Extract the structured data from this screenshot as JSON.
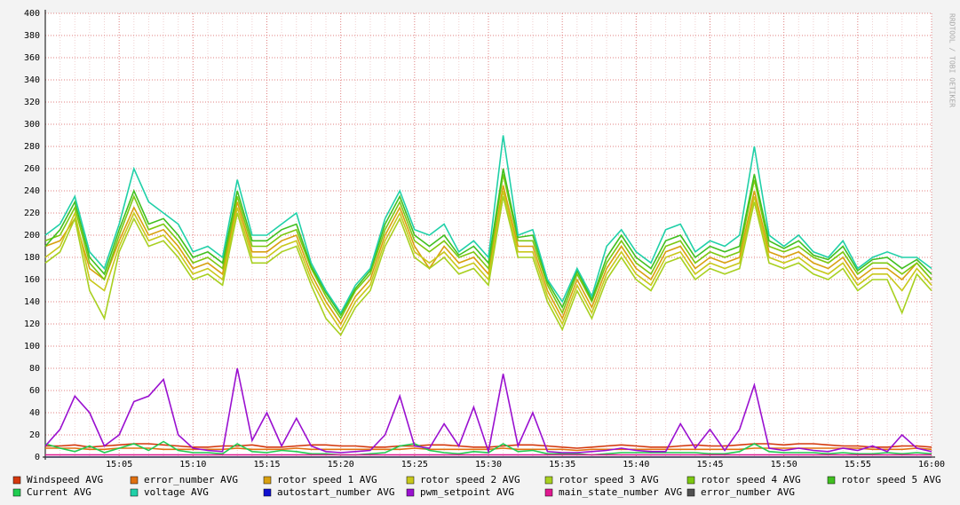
{
  "chart_data": {
    "type": "line",
    "watermark": "RRDTOOL / TOBI OETIKER",
    "categories": [
      null,
      null,
      null,
      null,
      null,
      "15:05",
      null,
      null,
      null,
      null,
      "15:10",
      null,
      null,
      null,
      null,
      "15:15",
      null,
      null,
      null,
      null,
      "15:20",
      null,
      null,
      null,
      null,
      "15:25",
      null,
      null,
      null,
      null,
      "15:30",
      null,
      null,
      null,
      null,
      "15:35",
      null,
      null,
      null,
      null,
      "15:40",
      null,
      null,
      null,
      null,
      "15:45",
      null,
      null,
      null,
      null,
      "15:50",
      null,
      null,
      null,
      null,
      "15:55",
      null,
      null,
      null,
      null,
      "16:00"
    ],
    "ylim": [
      0,
      400
    ],
    "yticks": [
      0,
      20,
      40,
      60,
      80,
      100,
      120,
      140,
      160,
      180,
      200,
      220,
      240,
      260,
      280,
      300,
      320,
      340,
      360,
      380,
      400
    ],
    "grid": true,
    "series": [
      {
        "name": "Windspeed AVG",
        "color": "#d4380d",
        "values": [
          10,
          10,
          11,
          9,
          10,
          11,
          12,
          12,
          11,
          10,
          9,
          9,
          10,
          10,
          11,
          9,
          9,
          10,
          11,
          11,
          10,
          10,
          9,
          9,
          10,
          10,
          11,
          11,
          10,
          9,
          9,
          10,
          11,
          11,
          10,
          9,
          8,
          9,
          10,
          11,
          10,
          9,
          9,
          10,
          11,
          10,
          10,
          11,
          12,
          12,
          11,
          12,
          12,
          11,
          10,
          10,
          9,
          9,
          10,
          10,
          9
        ]
      },
      {
        "name": "error_number AVG",
        "color": "#e07010",
        "values": [
          8,
          8,
          8,
          7,
          7,
          8,
          8,
          8,
          7,
          7,
          7,
          7,
          7,
          8,
          7,
          7,
          7,
          8,
          7,
          7,
          7,
          7,
          7,
          7,
          7,
          8,
          7,
          7,
          7,
          7,
          7,
          8,
          7,
          7,
          7,
          7,
          6,
          7,
          7,
          7,
          7,
          7,
          7,
          7,
          7,
          7,
          7,
          7,
          8,
          8,
          8,
          8,
          8,
          8,
          8,
          8,
          7,
          7,
          7,
          8,
          7
        ]
      },
      {
        "name": "rotor speed 1 AVG",
        "color": "#d8a010",
        "values": [
          190,
          195,
          215,
          170,
          160,
          195,
          225,
          200,
          205,
          190,
          170,
          175,
          165,
          230,
          185,
          185,
          195,
          200,
          165,
          140,
          120,
          145,
          160,
          200,
          225,
          190,
          170,
          190,
          175,
          180,
          165,
          245,
          190,
          190,
          150,
          125,
          160,
          135,
          170,
          190,
          170,
          160,
          185,
          190,
          170,
          180,
          175,
          180,
          240,
          185,
          180,
          185,
          175,
          170,
          180,
          160,
          170,
          170,
          160,
          175,
          160
        ]
      },
      {
        "name": "rotor speed 2 AVG",
        "color": "#c8c81a",
        "values": [
          180,
          190,
          220,
          160,
          150,
          190,
          220,
          195,
          200,
          185,
          165,
          170,
          160,
          225,
          180,
          180,
          190,
          195,
          160,
          135,
          115,
          140,
          155,
          195,
          220,
          185,
          175,
          185,
          170,
          175,
          160,
          240,
          185,
          185,
          145,
          120,
          155,
          130,
          165,
          185,
          165,
          155,
          180,
          185,
          165,
          175,
          170,
          175,
          235,
          180,
          175,
          180,
          170,
          165,
          175,
          155,
          165,
          165,
          150,
          170,
          155
        ]
      },
      {
        "name": "rotor speed 3 AVG",
        "color": "#a8d020",
        "values": [
          175,
          185,
          215,
          150,
          125,
          185,
          215,
          190,
          195,
          180,
          160,
          165,
          155,
          220,
          175,
          175,
          185,
          190,
          155,
          125,
          110,
          135,
          150,
          190,
          215,
          180,
          170,
          180,
          165,
          170,
          155,
          235,
          180,
          180,
          140,
          115,
          150,
          125,
          160,
          180,
          160,
          150,
          175,
          180,
          160,
          170,
          165,
          170,
          230,
          175,
          170,
          175,
          165,
          160,
          170,
          150,
          160,
          160,
          130,
          165,
          150
        ]
      },
      {
        "name": "rotor speed 4 AVG",
        "color": "#7cc810",
        "values": [
          195,
          200,
          225,
          175,
          160,
          200,
          235,
          205,
          210,
          195,
          175,
          180,
          170,
          235,
          190,
          190,
          200,
          205,
          170,
          145,
          125,
          150,
          165,
          205,
          230,
          195,
          185,
          195,
          180,
          185,
          170,
          255,
          195,
          195,
          155,
          130,
          165,
          140,
          175,
          195,
          175,
          165,
          190,
          195,
          175,
          185,
          180,
          185,
          250,
          190,
          185,
          190,
          180,
          175,
          185,
          165,
          175,
          175,
          165,
          175,
          160
        ]
      },
      {
        "name": "rotor speed 5 AVG",
        "color": "#40c020",
        "values": [
          190,
          205,
          230,
          180,
          165,
          205,
          240,
          210,
          215,
          200,
          180,
          185,
          175,
          240,
          195,
          195,
          205,
          210,
          172,
          148,
          128,
          152,
          168,
          210,
          235,
          200,
          190,
          200,
          182,
          190,
          175,
          260,
          198,
          200,
          158,
          135,
          168,
          142,
          180,
          200,
          180,
          170,
          195,
          200,
          180,
          190,
          185,
          190,
          255,
          195,
          188,
          195,
          182,
          178,
          190,
          168,
          178,
          180,
          170,
          178,
          165
        ]
      },
      {
        "name": "Current AVG",
        "color": "#20cc50",
        "values": [
          12,
          8,
          5,
          10,
          4,
          8,
          12,
          6,
          14,
          6,
          4,
          4,
          3,
          12,
          5,
          4,
          6,
          5,
          3,
          3,
          2,
          2,
          3,
          4,
          10,
          12,
          6,
          4,
          3,
          5,
          4,
          12,
          5,
          6,
          3,
          3,
          3,
          2,
          3,
          4,
          4,
          4,
          4,
          4,
          4,
          3,
          3,
          5,
          12,
          5,
          4,
          4,
          4,
          3,
          4,
          3,
          3,
          4,
          3,
          4,
          3
        ]
      },
      {
        "name": "voltage AVG",
        "color": "#20d0a8",
        "values": [
          200,
          210,
          235,
          185,
          170,
          210,
          260,
          230,
          220,
          210,
          185,
          190,
          180,
          250,
          200,
          200,
          210,
          220,
          175,
          150,
          130,
          155,
          170,
          215,
          240,
          205,
          200,
          210,
          185,
          195,
          180,
          290,
          200,
          205,
          160,
          140,
          170,
          145,
          190,
          205,
          185,
          175,
          205,
          210,
          185,
          195,
          190,
          200,
          280,
          200,
          190,
          200,
          185,
          180,
          195,
          170,
          180,
          185,
          180,
          180,
          170
        ]
      },
      {
        "name": "autostart_number AVG",
        "color": "#1010d0",
        "values": [
          0,
          0,
          0,
          0,
          0,
          0,
          0,
          0,
          0,
          0,
          0,
          0,
          0,
          0,
          0,
          0,
          0,
          0,
          0,
          0,
          0,
          0,
          0,
          0,
          0,
          0,
          0,
          0,
          0,
          0,
          0,
          0,
          0,
          0,
          0,
          0,
          0,
          0,
          0,
          0,
          0,
          0,
          0,
          0,
          0,
          0,
          0,
          0,
          0,
          0,
          0,
          0,
          0,
          0,
          0,
          0,
          0,
          0,
          0,
          0,
          0
        ]
      },
      {
        "name": "pwm_setpoint AVG",
        "color": "#9a10d0",
        "values": [
          10,
          25,
          55,
          40,
          10,
          20,
          50,
          55,
          70,
          20,
          8,
          6,
          5,
          80,
          15,
          40,
          10,
          35,
          10,
          5,
          4,
          5,
          6,
          20,
          55,
          10,
          8,
          30,
          10,
          45,
          5,
          75,
          10,
          40,
          5,
          4,
          4,
          5,
          6,
          8,
          6,
          5,
          5,
          30,
          8,
          25,
          6,
          25,
          65,
          8,
          6,
          8,
          6,
          5,
          8,
          6,
          10,
          5,
          20,
          8,
          5
        ]
      },
      {
        "name": "main_state_number AVG",
        "color": "#e01890",
        "values": [
          2,
          2,
          2,
          2,
          2,
          2,
          2,
          2,
          2,
          2,
          2,
          2,
          2,
          2,
          2,
          2,
          2,
          2,
          2,
          2,
          2,
          2,
          2,
          2,
          2,
          2,
          2,
          2,
          2,
          2,
          2,
          2,
          2,
          2,
          2,
          2,
          2,
          2,
          2,
          2,
          2,
          2,
          2,
          2,
          2,
          2,
          2,
          2,
          2,
          2,
          2,
          2,
          2,
          2,
          2,
          2,
          2,
          2,
          2,
          2,
          2
        ]
      },
      {
        "name": "error_number AVG",
        "color": "#505050",
        "values": [
          0,
          0,
          0,
          0,
          0,
          0,
          0,
          0,
          0,
          0,
          0,
          0,
          0,
          0,
          0,
          0,
          0,
          0,
          0,
          0,
          0,
          0,
          0,
          0,
          0,
          0,
          0,
          0,
          0,
          0,
          0,
          0,
          0,
          0,
          0,
          0,
          0,
          0,
          0,
          0,
          0,
          0,
          0,
          0,
          0,
          0,
          0,
          0,
          0,
          0,
          0,
          0,
          0,
          0,
          0,
          0,
          0,
          0,
          0,
          0,
          0
        ]
      }
    ]
  }
}
